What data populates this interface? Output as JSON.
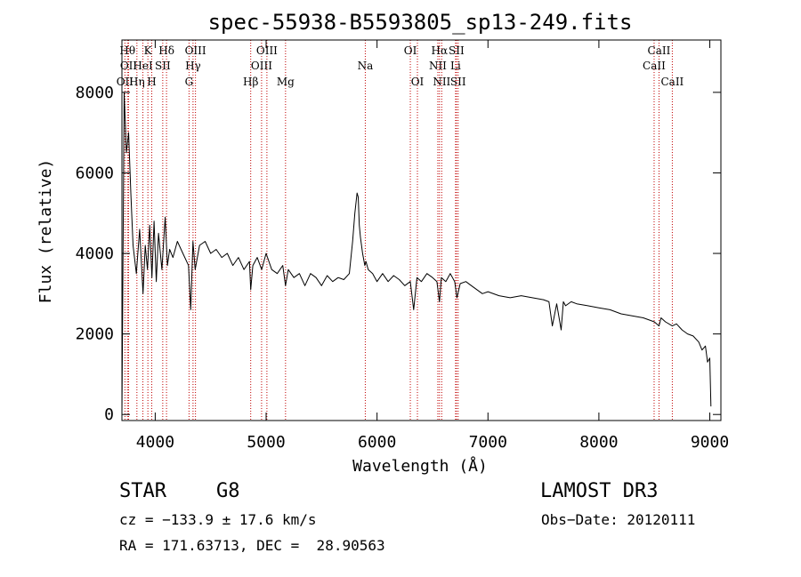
{
  "chart_data": {
    "type": "line",
    "title": "spec-55938-B5593805_sp13-249.fits",
    "xlabel": "Wavelength (Å)",
    "ylabel": "Flux (relative)",
    "xlim": [
      3700,
      9100
    ],
    "ylim": [
      -150,
      9300
    ],
    "x_ticks": [
      4000,
      5000,
      6000,
      7000,
      8000,
      9000
    ],
    "y_ticks": [
      0,
      2000,
      4000,
      6000,
      8000
    ],
    "series": [
      {
        "name": "spectrum",
        "color": "#000000",
        "x": [
          3700,
          3720,
          3740,
          3760,
          3780,
          3800,
          3830,
          3860,
          3890,
          3910,
          3930,
          3950,
          3970,
          3990,
          4010,
          4030,
          4060,
          4090,
          4110,
          4130,
          4160,
          4200,
          4250,
          4300,
          4320,
          4340,
          4360,
          4400,
          4450,
          4500,
          4550,
          4600,
          4650,
          4700,
          4750,
          4800,
          4850,
          4861,
          4880,
          4920,
          4960,
          5000,
          5050,
          5100,
          5150,
          5175,
          5200,
          5250,
          5300,
          5350,
          5400,
          5450,
          5500,
          5550,
          5600,
          5650,
          5700,
          5750,
          5780,
          5800,
          5820,
          5830,
          5840,
          5850,
          5870,
          5890,
          5900,
          5920,
          5960,
          6000,
          6050,
          6100,
          6150,
          6200,
          6250,
          6300,
          6330,
          6360,
          6400,
          6450,
          6500,
          6540,
          6563,
          6580,
          6620,
          6660,
          6700,
          6720,
          6750,
          6800,
          6850,
          6900,
          6950,
          7000,
          7100,
          7200,
          7300,
          7400,
          7500,
          7550,
          7580,
          7620,
          7660,
          7680,
          7700,
          7750,
          7800,
          7900,
          8000,
          8100,
          8200,
          8300,
          8400,
          8500,
          8542,
          8560,
          8600,
          8662,
          8700,
          8750,
          8800,
          8850,
          8900,
          8930,
          8960,
          8980,
          9000,
          9010
        ],
        "y": [
          0,
          8000,
          6500,
          7000,
          5500,
          4200,
          3500,
          4600,
          3000,
          4200,
          3600,
          4700,
          3400,
          4800,
          3300,
          4500,
          3600,
          4900,
          3700,
          4100,
          3900,
          4300,
          4000,
          3700,
          2600,
          4300,
          3600,
          4200,
          4300,
          4000,
          4100,
          3900,
          4000,
          3700,
          3900,
          3600,
          3800,
          3100,
          3700,
          3900,
          3600,
          4000,
          3600,
          3500,
          3700,
          3200,
          3600,
          3400,
          3500,
          3200,
          3500,
          3400,
          3200,
          3450,
          3300,
          3400,
          3350,
          3500,
          4300,
          5000,
          5500,
          5400,
          4700,
          4400,
          4000,
          3700,
          3800,
          3600,
          3500,
          3300,
          3500,
          3300,
          3450,
          3350,
          3200,
          3300,
          2600,
          3400,
          3300,
          3500,
          3400,
          3300,
          2800,
          3400,
          3300,
          3500,
          3300,
          2900,
          3250,
          3300,
          3200,
          3100,
          3000,
          3050,
          2950,
          2900,
          2950,
          2900,
          2850,
          2800,
          2200,
          2750,
          2100,
          2800,
          2700,
          2800,
          2750,
          2700,
          2650,
          2600,
          2500,
          2450,
          2400,
          2300,
          2200,
          2400,
          2300,
          2200,
          2250,
          2100,
          2000,
          1950,
          1800,
          1600,
          1700,
          1300,
          1400,
          200
        ]
      }
    ],
    "line_markers": [
      {
        "label": "OII",
        "x": 3727,
        "row": 3
      },
      {
        "label": "Hθ",
        "x": 3750,
        "row": 1
      },
      {
        "label": "OII",
        "x": 3760,
        "row": 2
      },
      {
        "label": "Hη",
        "x": 3835,
        "row": 3
      },
      {
        "label": "HeI",
        "x": 3889,
        "row": 2
      },
      {
        "label": "K",
        "x": 3934,
        "row": 1
      },
      {
        "label": "H",
        "x": 3969,
        "row": 3
      },
      {
        "label": "SII",
        "x": 4068,
        "row": 2
      },
      {
        "label": "Hδ",
        "x": 4102,
        "row": 1
      },
      {
        "label": "G",
        "x": 4305,
        "row": 3
      },
      {
        "label": "Hγ",
        "x": 4341,
        "row": 2
      },
      {
        "label": "OIII",
        "x": 4363,
        "row": 1
      },
      {
        "label": "Hβ",
        "x": 4861,
        "row": 3
      },
      {
        "label": "OIII",
        "x": 4959,
        "row": 2
      },
      {
        "label": "OIII",
        "x": 5007,
        "row": 1
      },
      {
        "label": "Mg",
        "x": 5175,
        "row": 3
      },
      {
        "label": "Na",
        "x": 5894,
        "row": 2
      },
      {
        "label": "OI",
        "x": 6300,
        "row": 1
      },
      {
        "label": "OI",
        "x": 6364,
        "row": 3
      },
      {
        "label": "NII",
        "x": 6548,
        "row": 2
      },
      {
        "label": "Hα",
        "x": 6563,
        "row": 1
      },
      {
        "label": "NII",
        "x": 6583,
        "row": 3
      },
      {
        "label": "Li",
        "x": 6708,
        "row": 2
      },
      {
        "label": "SII",
        "x": 6716,
        "row": 1
      },
      {
        "label": "SII",
        "x": 6731,
        "row": 3
      },
      {
        "label": "CaII",
        "x": 8498,
        "row": 2
      },
      {
        "label": "CaII",
        "x": 8542,
        "row": 1
      },
      {
        "label": "CaII",
        "x": 8662,
        "row": 3
      }
    ],
    "marker_color": "#c00000"
  },
  "footer": {
    "object_class": "STAR",
    "subclass": "G8",
    "survey": "LAMOST DR3",
    "velocity": "cz = −133.9 ± 17.6 km/s",
    "obs_date": "Obs−Date: 20120111",
    "coords": "RA = 171.63713, DEC =  28.90563"
  }
}
